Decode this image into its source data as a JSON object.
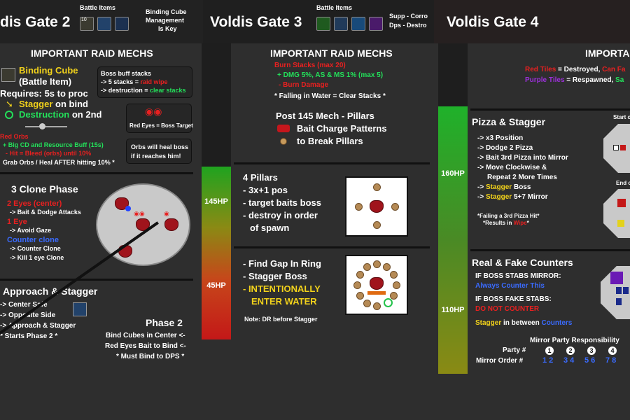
{
  "headers": {
    "gate2": {
      "title": "dis Gate 2",
      "battle_items_label": "Battle Items",
      "note": [
        "Binding Cube",
        "Management",
        "Is Key"
      ],
      "icon_badge": "10"
    },
    "gate3": {
      "title": "Voldis Gate 3",
      "battle_items_label": "Battle Items",
      "note": [
        "Supp - Corro",
        "Dps - Destro"
      ]
    },
    "gate4": {
      "title": "Voldis Gate 4"
    }
  },
  "hp_bars": {
    "bar1_top": "145HP",
    "bar1_bottom": "45HP",
    "bar2_top": "160HP",
    "bar2_bottom": "110HP"
  },
  "gate2": {
    "mechs_title": "IMPORTANT RAID MECHS",
    "binding_cube": "Binding Cube",
    "battle_item": "(Battle Item)",
    "requires": "Requires: 5s to proc",
    "stagger_word": "Stagger",
    "stagger_rest": " on bind",
    "destruction_word": "Destruction",
    "destruction_rest": " on 2nd",
    "red_orbs_title": "Red Orbs",
    "orbs_line1": "+ Big CD and Resource Buff (15s)",
    "orbs_line2": "- Hit = Bleed (orbs) until 10%",
    "orbs_line3": "Grab Orbs / Heal AFTER hitting 10% *",
    "boss_buff": {
      "title": "Boss buff stacks",
      "line1_pre": "-> 5 stacks = ",
      "line1_hl": "raid wipe",
      "line2_pre": "-> destruction = ",
      "line2_hl": "clear stacks"
    },
    "red_eyes": "Red Eyes = Boss Target",
    "orbs_heal": [
      "Orbs will heal boss",
      "if it reaches him!"
    ],
    "clone_title": "3 Clone Phase",
    "two_eyes": "2 Eyes (center)",
    "two_eyes_sub": "-> Bait & Dodge Attacks",
    "one_eye": "1 Eye",
    "one_eye_sub": "-> Avoid Gaze",
    "counter_clone": "Counter clone",
    "counter_sub1": "-> Counter Clone",
    "counter_sub2": "-> Kill 1 eye Clone",
    "approach_title": "Approach & Stagger",
    "approach_1": "-> Center Safe",
    "approach_2": "-> Opposite Side",
    "approach_3": "-> Approach & Stagger",
    "approach_4": "* Starts Phase 2 *",
    "phase2_title": "Phase 2",
    "phase2_1": "Bind Cubes in Center <-",
    "phase2_2": "Red Eyes Bait to Bind <-",
    "phase2_3": "* Must Bind to DPS *"
  },
  "gate3": {
    "mechs_title": "IMPORTANT RAID MECHS",
    "burn_stacks": "Burn Stacks (max 20)",
    "buff_line": "+ DMG 5%, AS & MS 1% (max 5)",
    "burn_damage": "- Burn Damage",
    "falling": "* Falling in Water = Clear Stacks *",
    "post145": "Post 145 Mech - Pillars",
    "bait_charge": "Bait Charge Patterns",
    "break_pillars": "to Break Pillars",
    "pillars_title": "4 Pillars",
    "pillars_1": "- 3x+1 pos",
    "pillars_2": "- target baits boss",
    "pillars_3": "- destroy in order",
    "pillars_4": "of spawn",
    "gap_1": "- Find Gap In Ring",
    "gap_2": "- Stagger Boss",
    "gap_3": "- INTENTIONALLY",
    "gap_4": "ENTER WATER",
    "dr_note": "Note: DR before Stagger"
  },
  "gate4": {
    "mechs_title": "IMPORTA",
    "red_tiles": "Red Tiles",
    "red_tiles_rest": " = Destroyed, ",
    "can_fall": "Can Fa",
    "purple_tiles": "Purple Tiles",
    "purple_rest": " = Respawned, ",
    "safe": "Sa",
    "pizza_title": "Pizza & Stagger",
    "pizza_1": "-> x3 Position",
    "pizza_2": "-> Dodge 2 Pizza",
    "pizza_3": "-> Bait 3rd Pizza into Mirror",
    "pizza_4": "-> Move Clockwise &",
    "pizza_5": "Repeat 2 More Times",
    "pizza_6_pre": "-> ",
    "pizza_6_hl": "Stagger",
    "pizza_6_post": " Boss",
    "pizza_7_pre": "-> ",
    "pizza_7_hl": "Stagger",
    "pizza_7_post": " 5+7 Mirror",
    "failing_1": "*Failing a 3rd Pizza Hit*",
    "failing_2_pre": "*Results in ",
    "failing_2_hl": "Wipe",
    "failing_2_post": "*",
    "start_label": "Start o",
    "end_label": "End o",
    "counters_title": "Real & Fake Counters",
    "stabs_mirror": "IF BOSS STABS MIRROR:",
    "always_counter": "Always Counter This",
    "fake_stabs": "IF BOSS FAKE STABS:",
    "do_not": "DO NOT COUNTER",
    "stagger_between_pre": "Stagger",
    "stagger_between_mid": " in between ",
    "stagger_between_post": "Counters",
    "mirror_title": "Mirror Party Responsibility",
    "party_label": "Party #",
    "mirror_label": "Mirror Order #",
    "party_numbers": [
      "1",
      "2",
      "3",
      "4"
    ],
    "mirror_orders": [
      "1 2",
      "3 4",
      "5 6",
      "7 8"
    ]
  },
  "colors": {
    "yellow": "#f2d21b",
    "green": "#23e05a",
    "red": "#e82020",
    "blue": "#3a6bff",
    "purple": "#9b30d9"
  }
}
